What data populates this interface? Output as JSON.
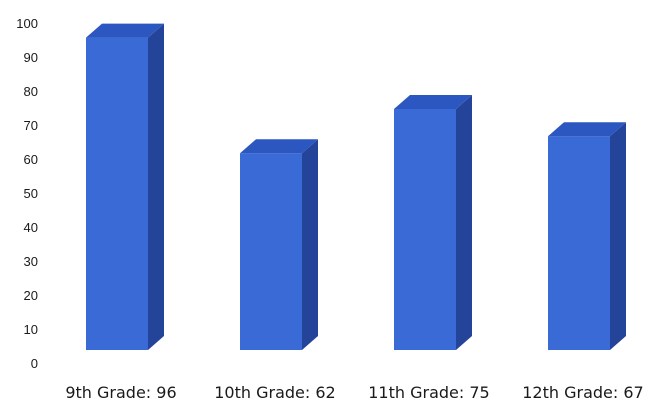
{
  "chart_data": {
    "type": "bar",
    "style": "3d-column",
    "categories": [
      "9th Grade: 96",
      "10th Grade: 62",
      "11th Grade: 75",
      "12th Grade: 67"
    ],
    "values": [
      96,
      62,
      75,
      67
    ],
    "title": "",
    "xlabel": "",
    "ylabel": "",
    "ylim": [
      0,
      100
    ],
    "yticks": [
      0,
      10,
      20,
      30,
      40,
      50,
      60,
      70,
      80,
      90,
      100
    ],
    "grid": false,
    "legend": "none",
    "colors": {
      "front": "#3a6ad6",
      "side": "#24449a",
      "top": "#2c56c0"
    }
  }
}
